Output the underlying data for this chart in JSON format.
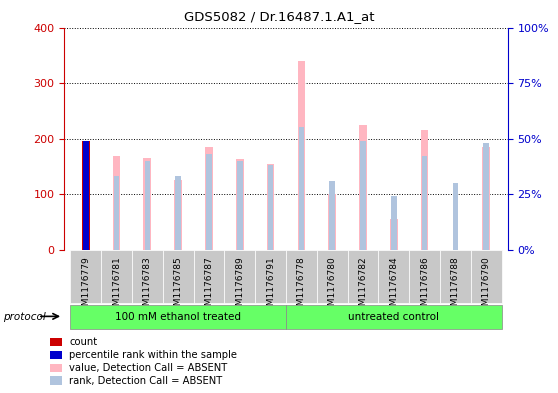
{
  "title": "GDS5082 / Dr.16487.1.A1_at",
  "samples": [
    "GSM1176779",
    "GSM1176781",
    "GSM1176783",
    "GSM1176785",
    "GSM1176787",
    "GSM1176789",
    "GSM1176791",
    "GSM1176778",
    "GSM1176780",
    "GSM1176782",
    "GSM1176784",
    "GSM1176786",
    "GSM1176788",
    "GSM1176790"
  ],
  "values": [
    195,
    168,
    165,
    125,
    185,
    163,
    155,
    340,
    100,
    225,
    55,
    215,
    0,
    185
  ],
  "ranks": [
    49,
    33,
    40,
    33,
    43,
    40,
    38,
    55,
    31,
    49,
    24,
    42,
    30,
    48
  ],
  "count_value": 195,
  "count_rank": 49,
  "count_sample_index": 0,
  "left_ylim": [
    0,
    400
  ],
  "right_ylim": [
    0,
    100
  ],
  "left_yticks": [
    0,
    100,
    200,
    300,
    400
  ],
  "right_yticks": [
    0,
    25,
    50,
    75,
    100
  ],
  "right_yticklabels": [
    "0%",
    "25%",
    "50%",
    "75%",
    "100%"
  ],
  "group1_label": "100 mM ethanol treated",
  "group2_label": "untreated control",
  "group_color": "#66FF66",
  "group1_count": 7,
  "group2_count": 7,
  "bar_width": 0.25,
  "rank_bar_width": 0.18,
  "value_bar_color": "#FFB6C1",
  "rank_bar_color": "#B0C4DE",
  "count_bar_color": "#CC0000",
  "count_rank_color": "#0000CC",
  "axis_left_color": "#CC0000",
  "axis_right_color": "#0000CC",
  "grid_color": "black",
  "sample_box_color": "#C8C8C8",
  "protocol_label": "protocol",
  "legend_items": [
    {
      "color": "#CC0000",
      "label": "count"
    },
    {
      "color": "#0000CC",
      "label": "percentile rank within the sample"
    },
    {
      "color": "#FFB6C1",
      "label": "value, Detection Call = ABSENT"
    },
    {
      "color": "#B0C4DE",
      "label": "rank, Detection Call = ABSENT"
    }
  ]
}
